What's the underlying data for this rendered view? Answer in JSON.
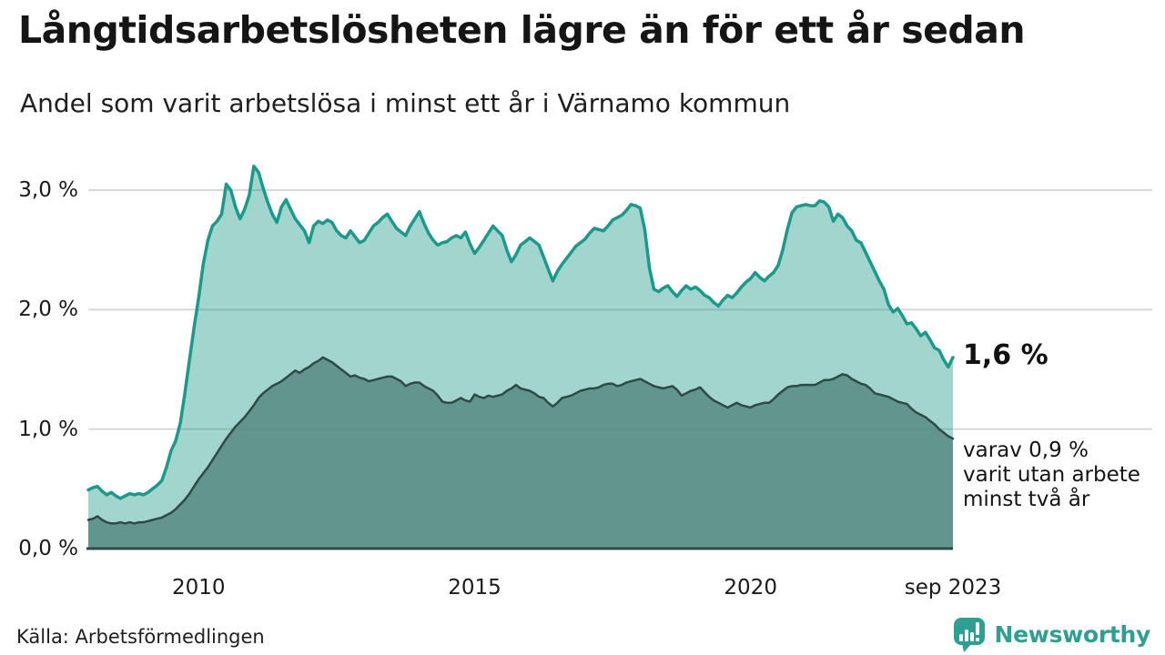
{
  "page": {
    "title": "Långtidsarbetslösheten lägre än för ett år sedan",
    "subtitle": "Andel som varit arbetslösa i minst ett år i Värnamo kommun",
    "source": "Källa: Arbetsförmedlingen",
    "brand": {
      "name": "Newsworthy",
      "color": "#2f9e93"
    }
  },
  "annotations": {
    "latest_value": "1,6 %",
    "secondary_lines": [
      "varav 0,9 %",
      "varit utan arbete",
      "minst två år"
    ]
  },
  "colors": {
    "grid": "#d8d8db",
    "axis": "#2e4a45",
    "accent_teal": "#1b998b",
    "dark_teal": "#2e4a45"
  },
  "chart_data": {
    "type": "area",
    "unit": "%",
    "frequency": "monthly",
    "x_start": "2008-01",
    "x_end": "2023-09",
    "ylim": [
      0,
      3.3
    ],
    "grid": true,
    "y_ticks": [
      {
        "value": 0,
        "label": "0,0 %"
      },
      {
        "value": 1,
        "label": "1,0 %"
      },
      {
        "value": 2,
        "label": "2,0 %"
      },
      {
        "value": 3,
        "label": "3,0 %"
      }
    ],
    "x_ticks": [
      {
        "x": "2010-01",
        "label": "2010"
      },
      {
        "x": "2015-01",
        "label": "2015"
      },
      {
        "x": "2020-01",
        "label": "2020"
      },
      {
        "x": "2023-09",
        "label": "sep 2023"
      }
    ],
    "series": [
      {
        "name": "Andel arbetslösa minst ett år",
        "latest_label": "1,6 %",
        "line_color": "#1b998b",
        "fill_color": "rgba(20,150,132,0.40)",
        "line_width": 3.5,
        "values": [
          0.49,
          0.51,
          0.52,
          0.48,
          0.45,
          0.47,
          0.44,
          0.42,
          0.44,
          0.46,
          0.45,
          0.46,
          0.45,
          0.47,
          0.5,
          0.53,
          0.57,
          0.68,
          0.82,
          0.9,
          1.05,
          1.3,
          1.58,
          1.85,
          2.1,
          2.38,
          2.58,
          2.7,
          2.74,
          2.8,
          3.05,
          3.0,
          2.86,
          2.76,
          2.84,
          2.96,
          3.2,
          3.15,
          3.02,
          2.9,
          2.8,
          2.73,
          2.86,
          2.92,
          2.84,
          2.76,
          2.71,
          2.66,
          2.56,
          2.7,
          2.74,
          2.72,
          2.75,
          2.73,
          2.66,
          2.62,
          2.6,
          2.66,
          2.61,
          2.56,
          2.58,
          2.64,
          2.7,
          2.73,
          2.77,
          2.8,
          2.74,
          2.68,
          2.65,
          2.62,
          2.7,
          2.76,
          2.82,
          2.72,
          2.64,
          2.58,
          2.54,
          2.56,
          2.57,
          2.6,
          2.62,
          2.6,
          2.65,
          2.55,
          2.47,
          2.52,
          2.58,
          2.64,
          2.7,
          2.66,
          2.62,
          2.5,
          2.4,
          2.46,
          2.54,
          2.57,
          2.6,
          2.57,
          2.54,
          2.44,
          2.34,
          2.24,
          2.32,
          2.38,
          2.43,
          2.48,
          2.53,
          2.56,
          2.59,
          2.64,
          2.68,
          2.67,
          2.66,
          2.7,
          2.75,
          2.77,
          2.79,
          2.83,
          2.88,
          2.87,
          2.85,
          2.67,
          2.35,
          2.17,
          2.15,
          2.18,
          2.2,
          2.15,
          2.11,
          2.16,
          2.2,
          2.17,
          2.19,
          2.16,
          2.12,
          2.1,
          2.06,
          2.03,
          2.08,
          2.12,
          2.1,
          2.14,
          2.19,
          2.23,
          2.26,
          2.31,
          2.27,
          2.24,
          2.28,
          2.31,
          2.37,
          2.5,
          2.67,
          2.81,
          2.86,
          2.87,
          2.88,
          2.87,
          2.87,
          2.91,
          2.9,
          2.86,
          2.74,
          2.8,
          2.77,
          2.7,
          2.66,
          2.58,
          2.56,
          2.48,
          2.4,
          2.32,
          2.24,
          2.17,
          2.04,
          1.98,
          2.01,
          1.95,
          1.88,
          1.89,
          1.84,
          1.78,
          1.81,
          1.75,
          1.68,
          1.66,
          1.58,
          1.52,
          1.6
        ]
      },
      {
        "name": "Andel arbetslösa minst två år",
        "latest_label": "0,9 %",
        "line_color": "#2e4a45",
        "fill_color": "rgba(86,137,130,0.85)",
        "line_width": 2.5,
        "values": [
          0.24,
          0.25,
          0.27,
          0.24,
          0.22,
          0.21,
          0.21,
          0.22,
          0.21,
          0.22,
          0.21,
          0.22,
          0.22,
          0.23,
          0.24,
          0.25,
          0.26,
          0.28,
          0.3,
          0.33,
          0.37,
          0.41,
          0.46,
          0.52,
          0.58,
          0.63,
          0.68,
          0.74,
          0.8,
          0.86,
          0.92,
          0.97,
          1.02,
          1.06,
          1.1,
          1.15,
          1.2,
          1.26,
          1.3,
          1.33,
          1.36,
          1.38,
          1.4,
          1.43,
          1.46,
          1.49,
          1.47,
          1.5,
          1.52,
          1.55,
          1.57,
          1.6,
          1.58,
          1.56,
          1.53,
          1.5,
          1.47,
          1.44,
          1.45,
          1.43,
          1.42,
          1.4,
          1.41,
          1.42,
          1.43,
          1.44,
          1.44,
          1.42,
          1.4,
          1.36,
          1.38,
          1.39,
          1.39,
          1.36,
          1.34,
          1.32,
          1.28,
          1.23,
          1.22,
          1.22,
          1.24,
          1.26,
          1.24,
          1.23,
          1.29,
          1.27,
          1.26,
          1.28,
          1.27,
          1.28,
          1.29,
          1.32,
          1.34,
          1.37,
          1.34,
          1.33,
          1.32,
          1.3,
          1.27,
          1.26,
          1.22,
          1.19,
          1.22,
          1.26,
          1.27,
          1.28,
          1.3,
          1.32,
          1.33,
          1.34,
          1.34,
          1.35,
          1.37,
          1.38,
          1.38,
          1.36,
          1.37,
          1.39,
          1.4,
          1.41,
          1.42,
          1.4,
          1.38,
          1.36,
          1.35,
          1.34,
          1.35,
          1.36,
          1.33,
          1.28,
          1.3,
          1.32,
          1.33,
          1.35,
          1.31,
          1.27,
          1.24,
          1.22,
          1.2,
          1.18,
          1.2,
          1.22,
          1.2,
          1.19,
          1.18,
          1.2,
          1.21,
          1.22,
          1.22,
          1.25,
          1.29,
          1.32,
          1.35,
          1.36,
          1.36,
          1.37,
          1.37,
          1.37,
          1.37,
          1.39,
          1.41,
          1.41,
          1.42,
          1.44,
          1.46,
          1.45,
          1.42,
          1.4,
          1.38,
          1.37,
          1.34,
          1.3,
          1.29,
          1.28,
          1.27,
          1.25,
          1.23,
          1.22,
          1.21,
          1.17,
          1.14,
          1.12,
          1.1,
          1.07,
          1.04,
          1.0,
          0.97,
          0.94,
          0.92
        ]
      }
    ]
  }
}
